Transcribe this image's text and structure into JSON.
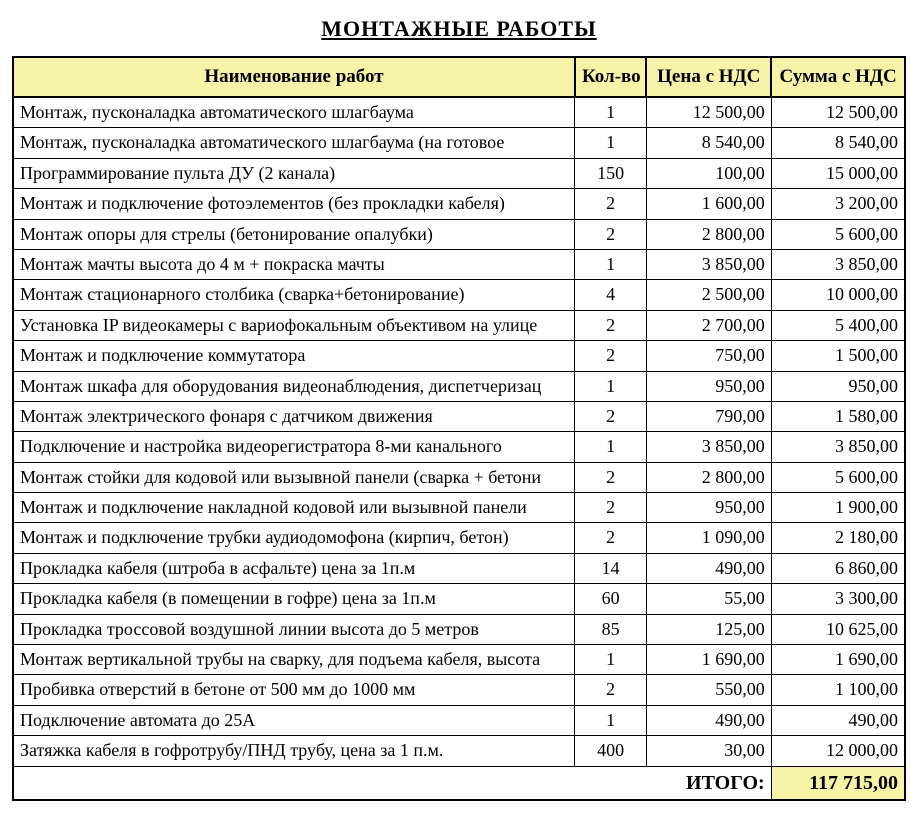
{
  "title": "МОНТАЖНЫЕ   РАБОТЫ",
  "columns": {
    "name": "Наименование работ",
    "qty": "Кол-во",
    "price": "Цена с НДС",
    "sum": "Сумма с НДС"
  },
  "totalLabel": "ИТОГО:",
  "totalValue": "117 715,00",
  "style": {
    "header_bg": "#f6f3a8",
    "total_bg": "#f6f3a8",
    "border_color": "#000000",
    "font_family": "Times New Roman",
    "title_fontsize": 22,
    "header_fontsize": 19,
    "cell_fontsize": 18,
    "col_widths_pct": [
      63,
      8,
      14,
      15
    ]
  },
  "rows": [
    {
      "name": "Монтаж, пусконаладка автоматического шлагбаума",
      "qty": "1",
      "price": "12 500,00",
      "sum": "12 500,00"
    },
    {
      "name": "Монтаж, пусконаладка автоматического шлагбаума (на готовое",
      "qty": "1",
      "price": "8 540,00",
      "sum": "8 540,00"
    },
    {
      "name": "Программирование пульта ДУ (2 канала)",
      "qty": "150",
      "price": "100,00",
      "sum": "15 000,00"
    },
    {
      "name": "Монтаж и подключение фотоэлементов (без прокладки кабеля)",
      "qty": "2",
      "price": "1 600,00",
      "sum": "3 200,00"
    },
    {
      "name": "Монтаж опоры для стрелы (бетонирование опалубки)",
      "qty": "2",
      "price": "2 800,00",
      "sum": "5 600,00"
    },
    {
      "name": "Монтаж мачты высота до 4 м + покраска мачты",
      "qty": "1",
      "price": "3 850,00",
      "sum": "3 850,00"
    },
    {
      "name": "Монтаж стационарного столбика (сварка+бетонирование)",
      "qty": "4",
      "price": "2 500,00",
      "sum": "10 000,00"
    },
    {
      "name": "Установка IP видеокамеры с вариофокальным объективом на улице",
      "qty": "2",
      "price": "2 700,00",
      "sum": "5 400,00"
    },
    {
      "name": "Монтаж и подключение коммутатора",
      "qty": "2",
      "price": "750,00",
      "sum": "1 500,00"
    },
    {
      "name": "Монтаж шкафа для оборудования видеонаблюдения, диспетчеризац",
      "qty": "1",
      "price": "950,00",
      "sum": "950,00"
    },
    {
      "name": "Монтаж электрического фонаря с датчиком движения",
      "qty": "2",
      "price": "790,00",
      "sum": "1 580,00"
    },
    {
      "name": "Подключение и настройка видеорегистратора 8-ми канального",
      "qty": "1",
      "price": "3 850,00",
      "sum": "3 850,00"
    },
    {
      "name": "Монтаж стойки для кодовой или вызывной панели (сварка + бетони",
      "qty": "2",
      "price": "2 800,00",
      "sum": "5 600,00"
    },
    {
      "name": "Монтаж и подключение накладной кодовой или вызывной панели",
      "qty": "2",
      "price": "950,00",
      "sum": "1 900,00"
    },
    {
      "name": "Монтаж и подключение трубки аудиодомофона (кирпич, бетон)",
      "qty": "2",
      "price": "1 090,00",
      "sum": "2 180,00"
    },
    {
      "name": "Прокладка кабеля (штроба в асфальте) цена за 1п.м",
      "qty": "14",
      "price": "490,00",
      "sum": "6 860,00"
    },
    {
      "name": "Прокладка кабеля (в помещении в гофре) цена за 1п.м",
      "qty": "60",
      "price": "55,00",
      "sum": "3 300,00"
    },
    {
      "name": "Прокладка троссовой воздушной линии высота до 5 метров",
      "qty": "85",
      "price": "125,00",
      "sum": "10 625,00"
    },
    {
      "name": "Монтаж вертикальной трубы на сварку, для подъема кабеля, высота",
      "qty": "1",
      "price": "1 690,00",
      "sum": "1 690,00"
    },
    {
      "name": "Пробивка отверстий в бетоне от 500 мм до 1000 мм",
      "qty": "2",
      "price": "550,00",
      "sum": "1 100,00"
    },
    {
      "name": "Подключение автомата до 25А",
      "qty": "1",
      "price": "490,00",
      "sum": "490,00"
    },
    {
      "name": "Затяжка кабеля в гофротрубу/ПНД трубу, цена за 1 п.м.",
      "qty": "400",
      "price": "30,00",
      "sum": "12 000,00"
    }
  ]
}
